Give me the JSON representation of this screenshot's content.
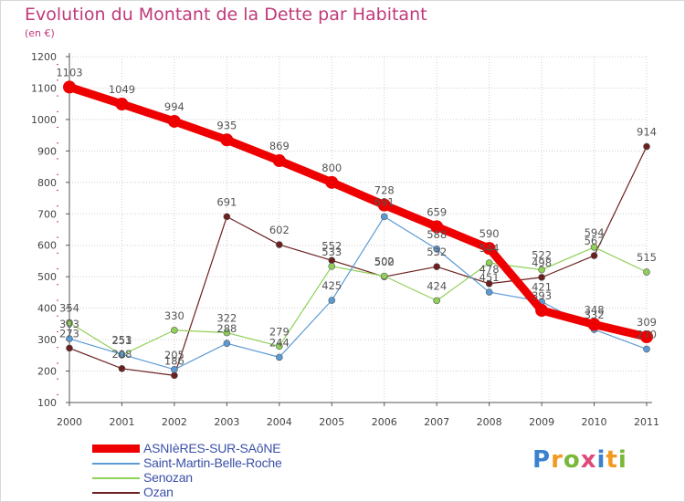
{
  "title": "Evolution du Montant de la Dette par Habitant",
  "unit": "(en €)",
  "logo": {
    "text": "Proxiti",
    "colors": [
      "#3a82d0",
      "#f39a1e",
      "#7ab83a",
      "#e04a7a",
      "#3a82d0",
      "#f39a1e",
      "#7ab83a"
    ]
  },
  "colors": {
    "grid": "#cfcfcf",
    "axis": "#555555",
    "label": "#444444",
    "tick_marks": "#c0397a"
  },
  "chart_data": {
    "type": "line",
    "categories": [
      "2000",
      "2001",
      "2002",
      "2003",
      "2004",
      "2005",
      "2006",
      "2007",
      "2008",
      "2009",
      "2010",
      "2011"
    ],
    "ylim": [
      100,
      1200
    ],
    "yticks": [
      100,
      200,
      300,
      400,
      500,
      600,
      700,
      800,
      900,
      1000,
      1100,
      1200
    ],
    "grid": true,
    "legend_position": "bottom-left",
    "series": [
      {
        "name": "ASNIèRES-SUR-SAôNE",
        "color": "#ee0000",
        "values": [
          1103,
          1049,
          994,
          935,
          869,
          800,
          728,
          659,
          590,
          393,
          348,
          309
        ],
        "width": 9,
        "marker": 7
      },
      {
        "name": "Saint-Martin-Belle-Roche",
        "color": "#5b9bd5",
        "values": [
          303,
          253,
          205,
          288,
          244,
          425,
          691,
          588,
          451,
          421,
          332,
          270
        ],
        "width": 1.2,
        "marker": 3.5
      },
      {
        "name": "Senozan",
        "color": "#8fd058",
        "values": [
          354,
          251,
          330,
          322,
          279,
          533,
          502,
          424,
          544,
          522,
          594,
          515
        ],
        "width": 1.2,
        "marker": 3.5
      },
      {
        "name": "Ozan",
        "color": "#6b1f1f",
        "values": [
          273,
          208,
          186,
          691,
          602,
          552,
          500,
          532,
          478,
          498,
          567,
          914
        ],
        "width": 1.2,
        "marker": 3.5
      }
    ],
    "data_labels": [
      [
        "1103",
        "1049",
        "994",
        "935",
        "869",
        "800",
        "728",
        "659",
        "590",
        "393",
        "348",
        "309"
      ],
      [
        "303",
        "253",
        "205",
        "288",
        "244",
        "425",
        "691",
        "588",
        "451",
        "421",
        "332",
        "270"
      ],
      [
        "354",
        "251",
        "330",
        "322",
        "279",
        "533",
        "502",
        "424",
        "544",
        "522",
        "594",
        "515"
      ],
      [
        "273",
        "208",
        "186",
        "691",
        "602",
        "552",
        "500",
        "532",
        "478",
        "498",
        "567",
        "914"
      ]
    ]
  }
}
